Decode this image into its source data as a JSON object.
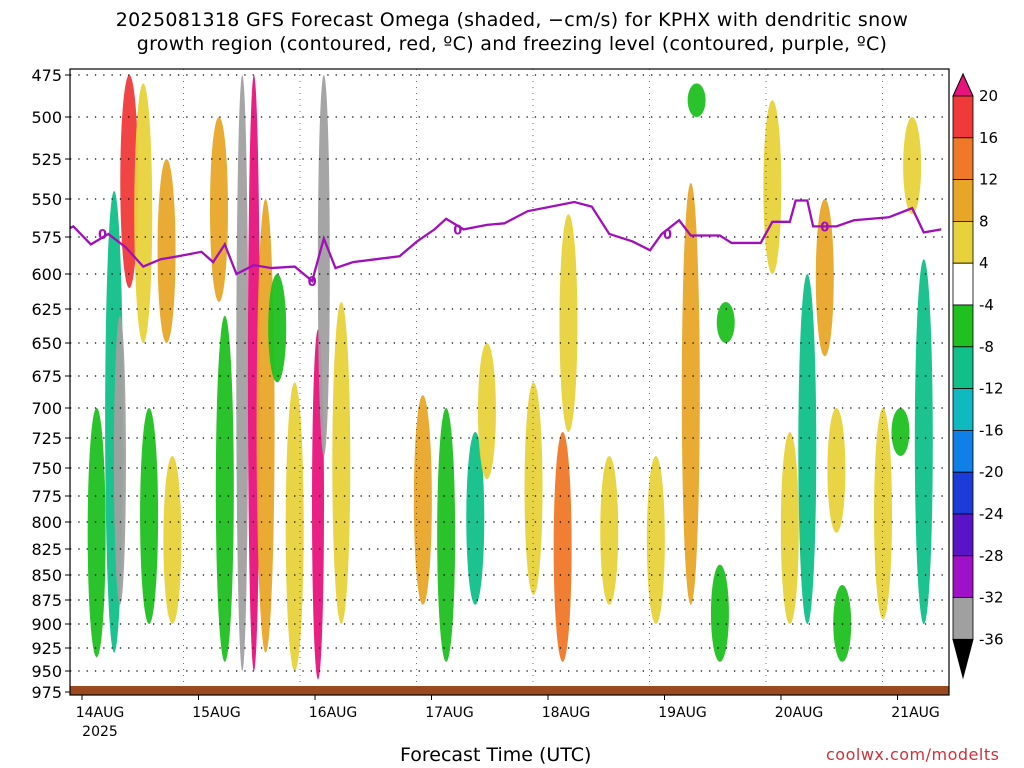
{
  "title_line1": "2025081318 GFS Forecast Omega (shaded, −cm/s) for KPHX with dendritic snow",
  "title_line2": "growth region (contoured, red, ºC) and freezing level (contoured, purple, ºC)",
  "xaxis_title": "Forecast Time (UTC)",
  "credit": "coolwx.com/modelts",
  "chart_data": {
    "type": "heatmap",
    "xlabel": "Forecast Time (UTC)",
    "ylabel": "",
    "x_ticks": [
      "14AUG",
      "15AUG",
      "16AUG",
      "17AUG",
      "18AUG",
      "19AUG",
      "20AUG",
      "21AUG"
    ],
    "x_year_label": "2025",
    "x_range_hours_from_start": [
      -6,
      180
    ],
    "y_ticks": [
      475,
      500,
      525,
      550,
      575,
      600,
      625,
      650,
      675,
      700,
      725,
      750,
      775,
      800,
      825,
      850,
      875,
      900,
      925,
      950,
      975
    ],
    "y_range_hPa": [
      475,
      975
    ],
    "y_reversed": true,
    "grid": true,
    "colorbar": {
      "ticks": [
        20,
        16,
        12,
        8,
        4,
        -4,
        -8,
        -12,
        -16,
        -20,
        -24,
        -28,
        -32,
        -36
      ],
      "colors": [
        "#e8147d",
        "#f03a3a",
        "#f07828",
        "#e8a628",
        "#e8d23c",
        "#ffffff",
        "#20c020",
        "#10c088",
        "#10b8c0",
        "#1080e8",
        "#1c3cd8",
        "#5a14c8",
        "#a010c8",
        "#a0a0a0",
        "#000000"
      ],
      "placement": "right"
    },
    "omega_cells": [
      {
        "day": 0.1,
        "p0": 700,
        "p1": 935,
        "val": -8
      },
      {
        "day": 0.25,
        "p0": 545,
        "p1": 930,
        "val": -10
      },
      {
        "day": 0.3,
        "p0": 630,
        "p1": 880,
        "val": -36
      },
      {
        "day": 0.38,
        "p0": 475,
        "p1": 610,
        "val": 16
      },
      {
        "day": 0.5,
        "p0": 480,
        "p1": 650,
        "val": 6
      },
      {
        "day": 0.55,
        "p0": 700,
        "p1": 900,
        "val": -8
      },
      {
        "day": 0.7,
        "p0": 525,
        "p1": 650,
        "val": 8
      },
      {
        "day": 0.75,
        "p0": 740,
        "p1": 900,
        "val": 6
      },
      {
        "day": 1.15,
        "p0": 500,
        "p1": 620,
        "val": 8
      },
      {
        "day": 1.2,
        "p0": 630,
        "p1": 940,
        "val": -8
      },
      {
        "day": 1.35,
        "p0": 475,
        "p1": 950,
        "val": -36
      },
      {
        "day": 1.45,
        "p0": 475,
        "p1": 950,
        "val": 20
      },
      {
        "day": 1.55,
        "p0": 550,
        "p1": 930,
        "val": 8
      },
      {
        "day": 1.65,
        "p0": 600,
        "p1": 680,
        "val": -8
      },
      {
        "day": 1.8,
        "p0": 680,
        "p1": 950,
        "val": 6
      },
      {
        "day": 2.0,
        "p0": 640,
        "p1": 960,
        "val": 20
      },
      {
        "day": 2.05,
        "p0": 475,
        "p1": 740,
        "val": -36
      },
      {
        "day": 2.2,
        "p0": 620,
        "p1": 900,
        "val": 6
      },
      {
        "day": 2.9,
        "p0": 690,
        "p1": 880,
        "val": 8
      },
      {
        "day": 3.1,
        "p0": 700,
        "p1": 940,
        "val": -8
      },
      {
        "day": 3.35,
        "p0": 720,
        "p1": 880,
        "val": -10
      },
      {
        "day": 3.45,
        "p0": 650,
        "p1": 760,
        "val": 6
      },
      {
        "day": 3.85,
        "p0": 680,
        "p1": 870,
        "val": 6
      },
      {
        "day": 4.1,
        "p0": 720,
        "p1": 940,
        "val": 12
      },
      {
        "day": 4.15,
        "p0": 560,
        "p1": 720,
        "val": 6
      },
      {
        "day": 4.5,
        "p0": 740,
        "p1": 880,
        "val": 6
      },
      {
        "day": 4.9,
        "p0": 740,
        "p1": 900,
        "val": 6
      },
      {
        "day": 5.25,
        "p0": 480,
        "p1": 500,
        "val": -8
      },
      {
        "day": 5.2,
        "p0": 540,
        "p1": 880,
        "val": 10
      },
      {
        "day": 5.5,
        "p0": 620,
        "p1": 650,
        "val": -8
      },
      {
        "day": 5.45,
        "p0": 840,
        "p1": 940,
        "val": -8
      },
      {
        "day": 5.9,
        "p0": 490,
        "p1": 600,
        "val": 6
      },
      {
        "day": 6.05,
        "p0": 720,
        "p1": 900,
        "val": 6
      },
      {
        "day": 6.2,
        "p0": 600,
        "p1": 900,
        "val": -12
      },
      {
        "day": 6.35,
        "p0": 550,
        "p1": 660,
        "val": 8
      },
      {
        "day": 6.45,
        "p0": 700,
        "p1": 810,
        "val": 6
      },
      {
        "day": 6.5,
        "p0": 860,
        "p1": 940,
        "val": -8
      },
      {
        "day": 6.85,
        "p0": 700,
        "p1": 895,
        "val": 6
      },
      {
        "day": 7.0,
        "p0": 700,
        "p1": 740,
        "val": -8
      },
      {
        "day": 7.1,
        "p0": 500,
        "p1": 560,
        "val": 6
      },
      {
        "day": 7.2,
        "p0": 590,
        "p1": 900,
        "val": -12
      }
    ],
    "freezing_level_label": "0",
    "freezing_level_hPa": [
      {
        "day": -0.25,
        "p": 574
      },
      {
        "day": -0.1,
        "p": 568
      },
      {
        "day": 0.05,
        "p": 580
      },
      {
        "day": 0.2,
        "p": 573
      },
      {
        "day": 0.35,
        "p": 582
      },
      {
        "day": 0.5,
        "p": 595
      },
      {
        "day": 0.65,
        "p": 590
      },
      {
        "day": 0.8,
        "p": 588
      },
      {
        "day": 1.0,
        "p": 585
      },
      {
        "day": 1.1,
        "p": 592
      },
      {
        "day": 1.2,
        "p": 580
      },
      {
        "day": 1.3,
        "p": 600
      },
      {
        "day": 1.45,
        "p": 594
      },
      {
        "day": 1.6,
        "p": 596
      },
      {
        "day": 1.8,
        "p": 595
      },
      {
        "day": 1.95,
        "p": 605
      },
      {
        "day": 2.05,
        "p": 576
      },
      {
        "day": 2.15,
        "p": 596
      },
      {
        "day": 2.3,
        "p": 592
      },
      {
        "day": 2.5,
        "p": 590
      },
      {
        "day": 2.7,
        "p": 588
      },
      {
        "day": 2.85,
        "p": 578
      },
      {
        "day": 3.0,
        "p": 570
      },
      {
        "day": 3.1,
        "p": 563
      },
      {
        "day": 3.25,
        "p": 570
      },
      {
        "day": 3.45,
        "p": 567
      },
      {
        "day": 3.6,
        "p": 566
      },
      {
        "day": 3.8,
        "p": 558
      },
      {
        "day": 4.0,
        "p": 555
      },
      {
        "day": 4.2,
        "p": 552
      },
      {
        "day": 4.35,
        "p": 555
      },
      {
        "day": 4.5,
        "p": 573
      },
      {
        "day": 4.7,
        "p": 578
      },
      {
        "day": 4.85,
        "p": 584
      },
      {
        "day": 4.95,
        "p": 573
      },
      {
        "day": 5.1,
        "p": 564
      },
      {
        "day": 5.2,
        "p": 574
      },
      {
        "day": 5.45,
        "p": 574
      },
      {
        "day": 5.55,
        "p": 579
      },
      {
        "day": 5.8,
        "p": 579
      },
      {
        "day": 5.9,
        "p": 565
      },
      {
        "day": 6.05,
        "p": 565
      },
      {
        "day": 6.1,
        "p": 551
      },
      {
        "day": 6.2,
        "p": 551
      },
      {
        "day": 6.25,
        "p": 568
      },
      {
        "day": 6.45,
        "p": 568
      },
      {
        "day": 6.6,
        "p": 564
      },
      {
        "day": 6.9,
        "p": 562
      },
      {
        "day": 7.1,
        "p": 556
      },
      {
        "day": 7.2,
        "p": 572
      },
      {
        "day": 7.35,
        "p": 570
      }
    ],
    "freezing_level_label_days": [
      0.15,
      1.95,
      3.2,
      5.0,
      6.35
    ]
  }
}
